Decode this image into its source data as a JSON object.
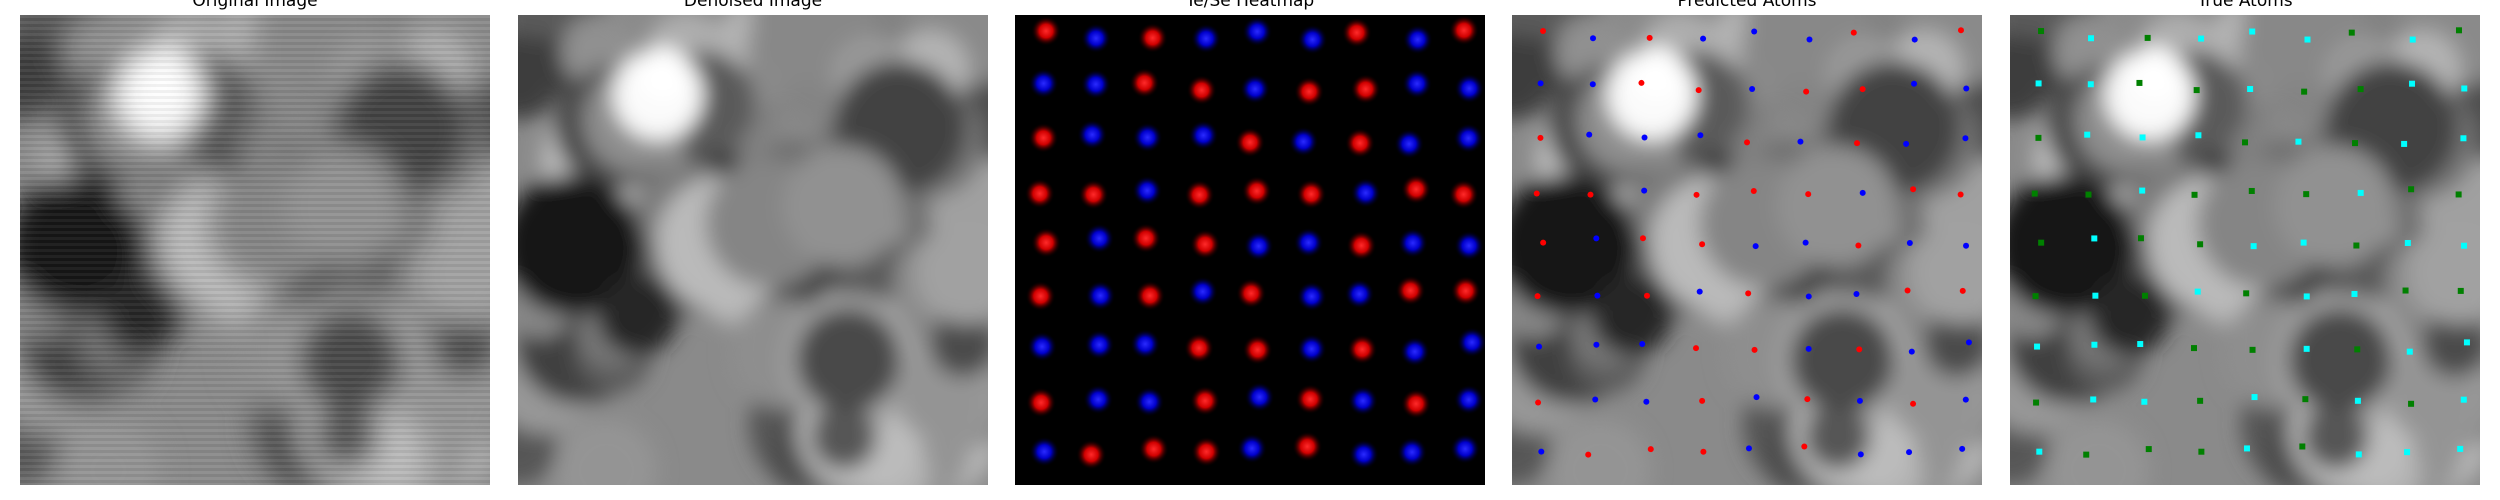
{
  "panels": [
    {
      "title": "Original Image"
    },
    {
      "title": "Denoised Image"
    },
    {
      "title": "Te/Se Heatmap"
    },
    {
      "title": "Predicted Atoms"
    },
    {
      "title": "True Atoms"
    }
  ],
  "colors": {
    "te": "#ff0000",
    "se": "#0000ff",
    "true_te": "#00ffff",
    "true_se": "#008000",
    "background": "#ffffff"
  }
}
